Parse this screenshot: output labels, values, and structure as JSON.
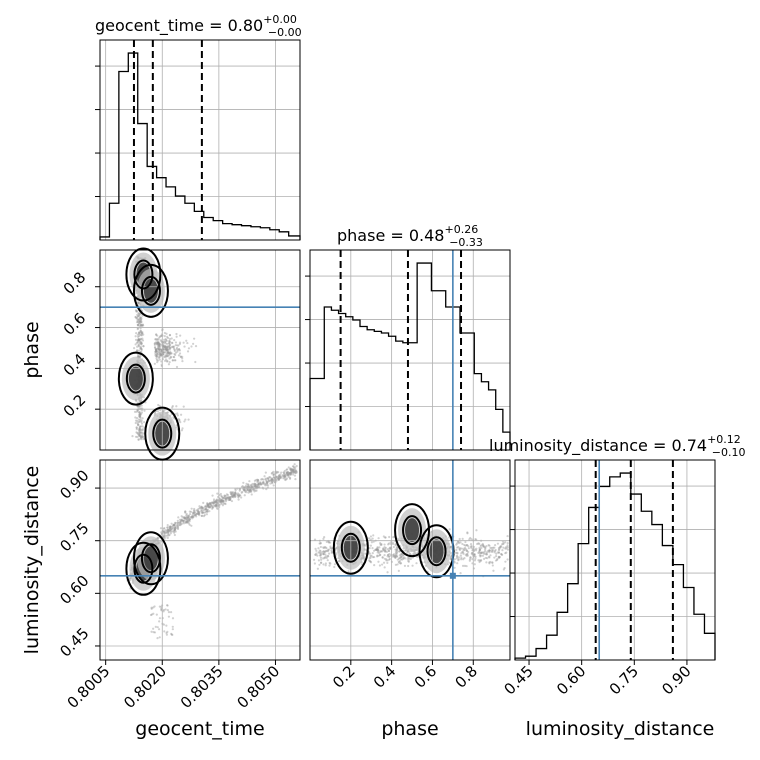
{
  "chart_data": {
    "type": "corner",
    "parameters": [
      "geocent_time",
      "phase",
      "luminosity_distance"
    ],
    "axis_labels": [
      "geocent_time",
      "phase",
      "luminosity_distance"
    ],
    "truth_color": "#4682b4",
    "truths": {
      "geocent_time": null,
      "phase": 0.7,
      "luminosity_distance": 0.65
    },
    "ranges": {
      "geocent_time": [
        0.80035,
        0.80565
      ],
      "phase": [
        0.0,
        0.98
      ],
      "luminosity_distance": [
        0.41,
        0.98
      ]
    },
    "ticks": {
      "geocent_time": {
        "values": [
          0.8005,
          0.802,
          0.8035,
          0.805
        ],
        "labels": [
          "0.8005",
          "0.8020",
          "0.8035",
          "0.8050"
        ]
      },
      "phase": {
        "values": [
          0.2,
          0.4,
          0.6,
          0.8
        ],
        "labels": [
          "0.2",
          "0.4",
          "0.6",
          "0.8"
        ]
      },
      "luminosity_distance": {
        "values": [
          0.45,
          0.6,
          0.75,
          0.9
        ],
        "labels": [
          "0.45",
          "0.60",
          "0.75",
          "0.90"
        ]
      }
    },
    "titles": {
      "geocent_time": {
        "text": "geocent_time = 0.80",
        "sup": "+0.00",
        "sub": "−0.00"
      },
      "phase": {
        "text": "phase = 0.48",
        "sup": "+0.26",
        "sub": "−0.33"
      },
      "luminosity_distance": {
        "text": "luminosity_distance = 0.74",
        "sup": "+0.12",
        "sub": "−0.10"
      }
    },
    "quantiles": {
      "geocent_time": [
        0.80125,
        0.80175,
        0.80305
      ],
      "phase": [
        0.15,
        0.48,
        0.74
      ],
      "luminosity_distance": [
        0.64,
        0.74,
        0.86
      ]
    },
    "histograms": {
      "geocent_time": {
        "edges": [
          0.80035,
          0.8006,
          0.80085,
          0.8011,
          0.80135,
          0.8016,
          0.80185,
          0.8021,
          0.80235,
          0.8026,
          0.80285,
          0.8031,
          0.80335,
          0.8036,
          0.80385,
          0.8041,
          0.80435,
          0.8046,
          0.80485,
          0.8051,
          0.80535,
          0.80565
        ],
        "counts": [
          3,
          36,
          165,
          183,
          114,
          72,
          61,
          52,
          43,
          36,
          28,
          22,
          19,
          16,
          15,
          14,
          13,
          12,
          10,
          8,
          4
        ]
      },
      "phase": {
        "edges": [
          0.0,
          0.035,
          0.07,
          0.105,
          0.14,
          0.175,
          0.21,
          0.245,
          0.28,
          0.315,
          0.35,
          0.385,
          0.42,
          0.455,
          0.49,
          0.525,
          0.56,
          0.595,
          0.63,
          0.665,
          0.7,
          0.735,
          0.77,
          0.805,
          0.84,
          0.875,
          0.91,
          0.945,
          0.98
        ],
        "counts": [
          44,
          44,
          88,
          86,
          84,
          82,
          80,
          76,
          74,
          73,
          72,
          70,
          67,
          66,
          66,
          115,
          115,
          98,
          98,
          88,
          88,
          72,
          72,
          47,
          42,
          37,
          25,
          11
        ]
      },
      "luminosity_distance": {
        "edges": [
          0.41,
          0.44,
          0.47,
          0.5,
          0.53,
          0.56,
          0.59,
          0.62,
          0.65,
          0.68,
          0.71,
          0.74,
          0.77,
          0.8,
          0.83,
          0.86,
          0.89,
          0.92,
          0.95,
          0.98
        ],
        "counts": [
          1,
          2,
          6,
          13,
          25,
          40,
          61,
          80,
          91,
          96,
          98,
          87,
          78,
          71,
          60,
          50,
          38,
          24,
          14
        ]
      }
    },
    "density_2d": {
      "phase_vs_geocent_time": {
        "mode_regions": [
          [
            0.8013,
            0.35
          ],
          [
            0.8015,
            0.86
          ],
          [
            0.8017,
            0.78
          ],
          [
            0.802,
            0.08
          ]
        ]
      },
      "luminosity_distance_vs_geocent_time": {
        "mode_regions": [
          [
            0.8015,
            0.67
          ],
          [
            0.8017,
            0.7
          ]
        ]
      },
      "luminosity_distance_vs_phase": {
        "mode_regions": [
          [
            0.2,
            0.73
          ],
          [
            0.5,
            0.78
          ],
          [
            0.62,
            0.72
          ]
        ]
      }
    },
    "grid": true
  }
}
